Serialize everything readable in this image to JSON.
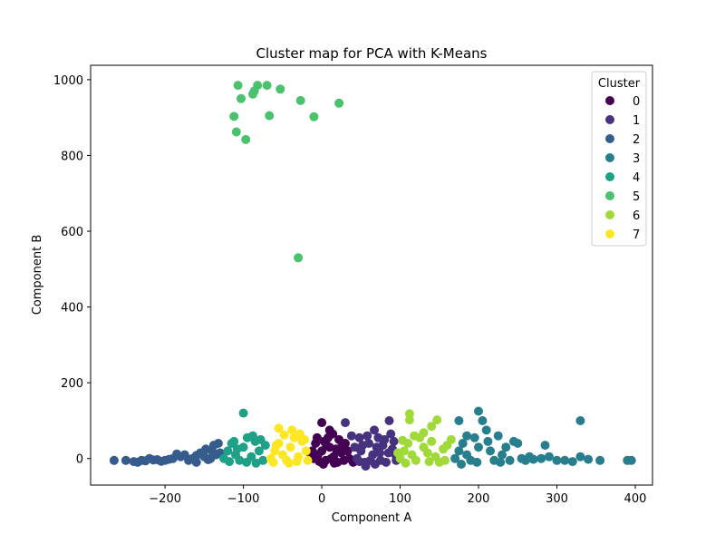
{
  "chart_data": {
    "type": "scatter",
    "title": "Cluster map for PCA with K-Means",
    "xlabel": "Component A",
    "ylabel": "Component B",
    "xlim": [
      -295,
      422
    ],
    "ylim": [
      -70,
      1038
    ],
    "xticks": [
      -200,
      -100,
      0,
      100,
      200,
      300,
      400
    ],
    "yticks": [
      0,
      200,
      400,
      600,
      800,
      1000
    ],
    "tick_labels_x": [
      "−200",
      "−100",
      "0",
      "100",
      "200",
      "300",
      "400"
    ],
    "tick_labels_y": [
      "0",
      "200",
      "400",
      "600",
      "800",
      "1000"
    ],
    "grid": false,
    "legend": {
      "title": "Cluster",
      "placement": "top-right",
      "labels": [
        "0",
        "1",
        "2",
        "3",
        "4",
        "5",
        "6",
        "7"
      ]
    },
    "colors": [
      "#440154",
      "#46327e",
      "#365c8d",
      "#277f8e",
      "#1fa187",
      "#4ac16d",
      "#a0da39",
      "#fde725"
    ],
    "series": [
      {
        "name": "0",
        "points": [
          [
            -10,
            0
          ],
          [
            -5,
            10
          ],
          [
            0,
            20
          ],
          [
            5,
            -5
          ],
          [
            10,
            30
          ],
          [
            15,
            5
          ],
          [
            20,
            -10
          ],
          [
            25,
            15
          ],
          [
            30,
            40
          ],
          [
            -8,
            40
          ],
          [
            2,
            -15
          ],
          [
            8,
            55
          ],
          [
            18,
            25
          ],
          [
            28,
            -5
          ],
          [
            -12,
            20
          ],
          [
            12,
            0
          ],
          [
            22,
            50
          ],
          [
            3,
            45
          ],
          [
            -3,
            -8
          ],
          [
            33,
            20
          ],
          [
            6,
            35
          ],
          [
            16,
            -12
          ],
          [
            26,
            35
          ],
          [
            -6,
            55
          ],
          [
            14,
            65
          ],
          [
            0,
            95
          ],
          [
            10,
            75
          ],
          [
            40,
            -10
          ],
          [
            35,
            0
          ],
          [
            -14,
            5
          ]
        ]
      },
      {
        "name": "1",
        "points": [
          [
            45,
            0
          ],
          [
            50,
            20
          ],
          [
            55,
            -10
          ],
          [
            60,
            40
          ],
          [
            65,
            10
          ],
          [
            70,
            30
          ],
          [
            75,
            -5
          ],
          [
            80,
            50
          ],
          [
            85,
            15
          ],
          [
            90,
            25
          ],
          [
            95,
            -5
          ],
          [
            48,
            55
          ],
          [
            58,
            60
          ],
          [
            68,
            -15
          ],
          [
            78,
            35
          ],
          [
            88,
            65
          ],
          [
            92,
            45
          ],
          [
            52,
            35
          ],
          [
            62,
            -5
          ],
          [
            72,
            55
          ],
          [
            82,
            -10
          ],
          [
            42,
            30
          ],
          [
            38,
            60
          ],
          [
            67,
            75
          ],
          [
            86,
            100
          ],
          [
            94,
            10
          ],
          [
            74,
            15
          ],
          [
            56,
            -20
          ],
          [
            48,
            -8
          ],
          [
            30,
            95
          ]
        ]
      },
      {
        "name": "2",
        "points": [
          [
            -265,
            -5
          ],
          [
            -250,
            -5
          ],
          [
            -240,
            -8
          ],
          [
            -230,
            -5
          ],
          [
            -220,
            0
          ],
          [
            -210,
            -3
          ],
          [
            -200,
            -5
          ],
          [
            -190,
            0
          ],
          [
            -180,
            5
          ],
          [
            -175,
            10
          ],
          [
            -170,
            -5
          ],
          [
            -165,
            0
          ],
          [
            -160,
            8
          ],
          [
            -155,
            15
          ],
          [
            -150,
            5
          ],
          [
            -145,
            -3
          ],
          [
            -140,
            20
          ],
          [
            -138,
            35
          ],
          [
            -135,
            10
          ],
          [
            -132,
            40
          ],
          [
            -185,
            12
          ],
          [
            -195,
            -2
          ],
          [
            -205,
            -7
          ],
          [
            -215,
            -4
          ],
          [
            -225,
            -6
          ],
          [
            -235,
            -10
          ],
          [
            -160,
            -10
          ],
          [
            -148,
            25
          ],
          [
            -142,
            0
          ],
          [
            -130,
            15
          ]
        ]
      },
      {
        "name": "3",
        "points": [
          [
            170,
            0
          ],
          [
            175,
            20
          ],
          [
            180,
            40
          ],
          [
            185,
            10
          ],
          [
            190,
            -5
          ],
          [
            195,
            55
          ],
          [
            200,
            30
          ],
          [
            205,
            100
          ],
          [
            210,
            75
          ],
          [
            215,
            20
          ],
          [
            220,
            -5
          ],
          [
            225,
            60
          ],
          [
            230,
            10
          ],
          [
            235,
            30
          ],
          [
            240,
            -5
          ],
          [
            245,
            45
          ],
          [
            250,
            40
          ],
          [
            255,
            0
          ],
          [
            260,
            -5
          ],
          [
            265,
            5
          ],
          [
            270,
            -2
          ],
          [
            280,
            0
          ],
          [
            285,
            35
          ],
          [
            290,
            5
          ],
          [
            300,
            -5
          ],
          [
            310,
            -5
          ],
          [
            320,
            -8
          ],
          [
            330,
            5
          ],
          [
            330,
            100
          ],
          [
            340,
            -2
          ],
          [
            355,
            -5
          ],
          [
            390,
            -5
          ],
          [
            395,
            -5
          ],
          [
            200,
            125
          ],
          [
            185,
            60
          ],
          [
            175,
            100
          ],
          [
            178,
            -15
          ],
          [
            198,
            -10
          ],
          [
            212,
            45
          ],
          [
            228,
            -10
          ]
        ]
      },
      {
        "name": "4",
        "points": [
          [
            -125,
            0
          ],
          [
            -120,
            20
          ],
          [
            -115,
            40
          ],
          [
            -110,
            10
          ],
          [
            -105,
            -5
          ],
          [
            -100,
            30
          ],
          [
            -95,
            55
          ],
          [
            -90,
            5
          ],
          [
            -85,
            45
          ],
          [
            -80,
            20
          ],
          [
            -75,
            -5
          ],
          [
            -72,
            35
          ],
          [
            -100,
            120
          ],
          [
            -112,
            45
          ],
          [
            -118,
            -8
          ],
          [
            -88,
            60
          ],
          [
            -78,
            50
          ],
          [
            -108,
            25
          ],
          [
            -96,
            -10
          ],
          [
            -84,
            -12
          ]
        ]
      },
      {
        "name": "5",
        "points": [
          [
            -107,
            985
          ],
          [
            -103,
            950
          ],
          [
            -82,
            985
          ],
          [
            -88,
            962
          ],
          [
            -86,
            970
          ],
          [
            -70,
            985
          ],
          [
            -53,
            975
          ],
          [
            -27,
            945
          ],
          [
            22,
            938
          ],
          [
            -112,
            903
          ],
          [
            -67,
            905
          ],
          [
            -10,
            902
          ],
          [
            -109,
            862
          ],
          [
            -97,
            842
          ],
          [
            -30,
            530
          ]
        ]
      },
      {
        "name": "6",
        "points": [
          [
            100,
            0
          ],
          [
            105,
            20
          ],
          [
            110,
            40
          ],
          [
            115,
            10
          ],
          [
            120,
            -5
          ],
          [
            125,
            55
          ],
          [
            130,
            30
          ],
          [
            135,
            15
          ],
          [
            140,
            45
          ],
          [
            145,
            5
          ],
          [
            150,
            -10
          ],
          [
            155,
            25
          ],
          [
            160,
            35
          ],
          [
            165,
            50
          ],
          [
            112,
            118
          ],
          [
            112,
            102
          ],
          [
            140,
            85
          ],
          [
            147,
            102
          ],
          [
            130,
            68
          ],
          [
            118,
            60
          ],
          [
            103,
            48
          ],
          [
            107,
            -12
          ],
          [
            137,
            -8
          ],
          [
            157,
            -5
          ],
          [
            97,
            15
          ]
        ]
      },
      {
        "name": "7",
        "points": [
          [
            -65,
            0
          ],
          [
            -60,
            20
          ],
          [
            -55,
            40
          ],
          [
            -50,
            10
          ],
          [
            -45,
            -5
          ],
          [
            -40,
            30
          ],
          [
            -35,
            55
          ],
          [
            -30,
            5
          ],
          [
            -25,
            45
          ],
          [
            -20,
            20
          ],
          [
            -18,
            -5
          ],
          [
            -55,
            80
          ],
          [
            -38,
            75
          ],
          [
            -48,
            62
          ],
          [
            -62,
            -10
          ],
          [
            -42,
            -12
          ],
          [
            -28,
            65
          ],
          [
            -58,
            35
          ],
          [
            -32,
            -8
          ],
          [
            -22,
            50
          ]
        ]
      }
    ]
  }
}
